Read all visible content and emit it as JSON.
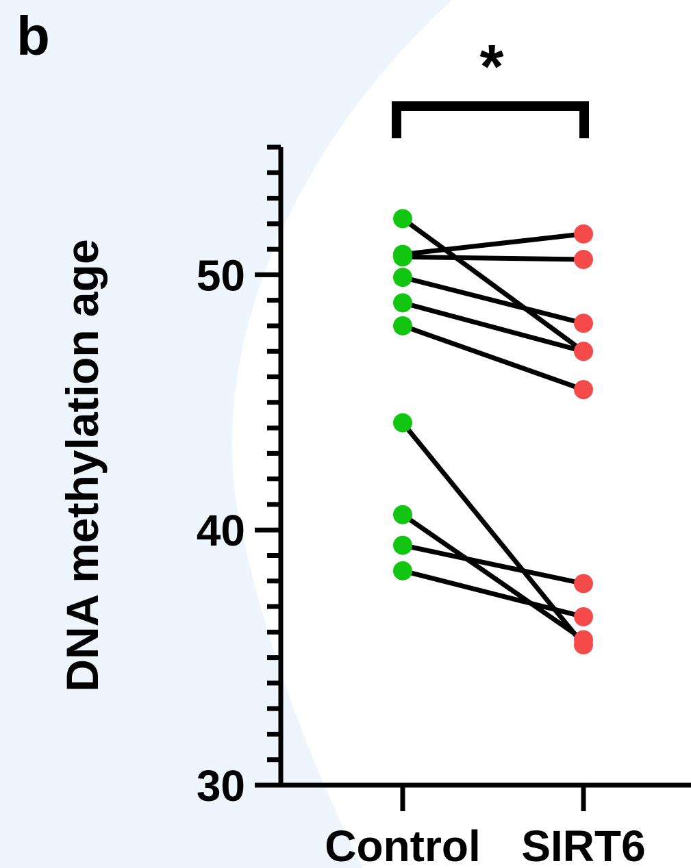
{
  "panel_label": "b",
  "significance": "*",
  "colors": {
    "control": "#11c511",
    "sirt6": "#f44a4a",
    "line": "#000000",
    "background": "#eef5fd"
  },
  "chart_data": {
    "type": "line",
    "ylabel": "DNA methylation age",
    "categories": [
      "Control",
      "SIRT6"
    ],
    "ylim": [
      30,
      55
    ],
    "yticks": [
      {
        "value": 30,
        "label": "30"
      },
      {
        "value": 40,
        "label": "40"
      },
      {
        "value": 50,
        "label": "50"
      }
    ],
    "minor_tick_step": 1,
    "pairs": [
      {
        "control": 52.2,
        "sirt6": 47.0
      },
      {
        "control": 50.8,
        "sirt6": 51.6
      },
      {
        "control": 50.7,
        "sirt6": 50.6
      },
      {
        "control": 49.9,
        "sirt6": 48.1
      },
      {
        "control": 48.9,
        "sirt6": 47.0
      },
      {
        "control": 48.0,
        "sirt6": 45.5
      },
      {
        "control": 44.2,
        "sirt6": 35.5
      },
      {
        "control": 40.6,
        "sirt6": 35.7
      },
      {
        "control": 39.4,
        "sirt6": 37.9
      },
      {
        "control": 38.4,
        "sirt6": 36.6
      }
    ]
  }
}
